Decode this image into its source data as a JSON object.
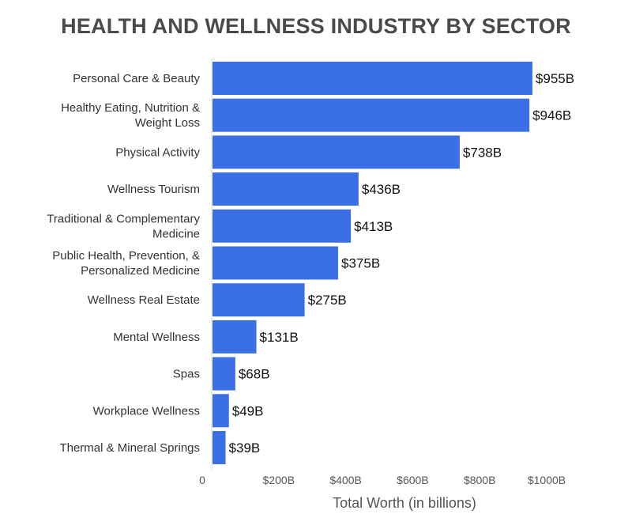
{
  "chart_data": {
    "type": "bar",
    "orientation": "horizontal",
    "title": "HEALTH AND WELLNESS INDUSTRY BY SECTOR",
    "xlabel": "Total Worth (in billions)",
    "ylabel": "",
    "xlim": [
      0,
      1000
    ],
    "grid": false,
    "color": "#3a6fe6",
    "categories": [
      [
        "Personal Care & Beauty"
      ],
      [
        "Healthy Eating, Nutrition &",
        "Weight Loss"
      ],
      [
        "Physical Activity"
      ],
      [
        "Wellness Tourism"
      ],
      [
        "Traditional & Complementary",
        "Medicine"
      ],
      [
        "Public Health, Prevention, &",
        "Personalized Medicine"
      ],
      [
        "Wellness Real Estate"
      ],
      [
        "Mental Wellness"
      ],
      [
        "Spas"
      ],
      [
        "Workplace Wellness"
      ],
      [
        "Thermal & Mineral Springs"
      ]
    ],
    "values": [
      955,
      946,
      738,
      436,
      413,
      375,
      275,
      131,
      68,
      49,
      39
    ],
    "value_labels": [
      "$955B",
      "$946B",
      "$738B",
      "$436B",
      "$413B",
      "$375B",
      "$275B",
      "$131B",
      "$68B",
      "$49B",
      "$39B"
    ],
    "ticks": [
      {
        "value": 0,
        "label": "0"
      },
      {
        "value": 200,
        "label": "$200B"
      },
      {
        "value": 400,
        "label": "$400B"
      },
      {
        "value": 600,
        "label": "$600B"
      },
      {
        "value": 800,
        "label": "$800B"
      },
      {
        "value": 1000,
        "label": "$1000B"
      }
    ]
  }
}
